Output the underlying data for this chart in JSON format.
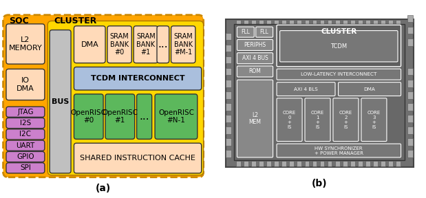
{
  "fig_width": 6.19,
  "fig_height": 2.88,
  "dpi": 100,
  "outer_orange": "#FFA500",
  "outer_border": "#CC8800",
  "cluster_yellow": "#FFD700",
  "soc_box_color": "#FFDAB9",
  "peach_color": "#FFDAB9",
  "tcdm_blue": "#AABFDD",
  "openrisc_green": "#5CB85C",
  "periph_purple": "#CC80CC",
  "bus_gray": "#C0C0C0",
  "periph_labels": [
    "SPI",
    "GPIO",
    "UART",
    "I2C",
    "I2S",
    "JTAG"
  ],
  "sram_labels": [
    "SRAM\nBANK\n#0",
    "SRAM\nBANK\n#1",
    "...",
    "SRAM\nBANK\n#M-1"
  ],
  "or_labels": [
    "OpenRISC\n#0",
    "OpenRISC\n#1",
    "...",
    "OpenRISC\n#N-1"
  ],
  "chip_dark": "#6B6B6B",
  "chip_mid": "#888888",
  "chip_light": "#9A9A9A",
  "chip_pad": "#AAAAAA",
  "chip_inner": "#5C5C5C",
  "chip_box": "#7A7A7A",
  "chip_white": "#FFFFFF"
}
